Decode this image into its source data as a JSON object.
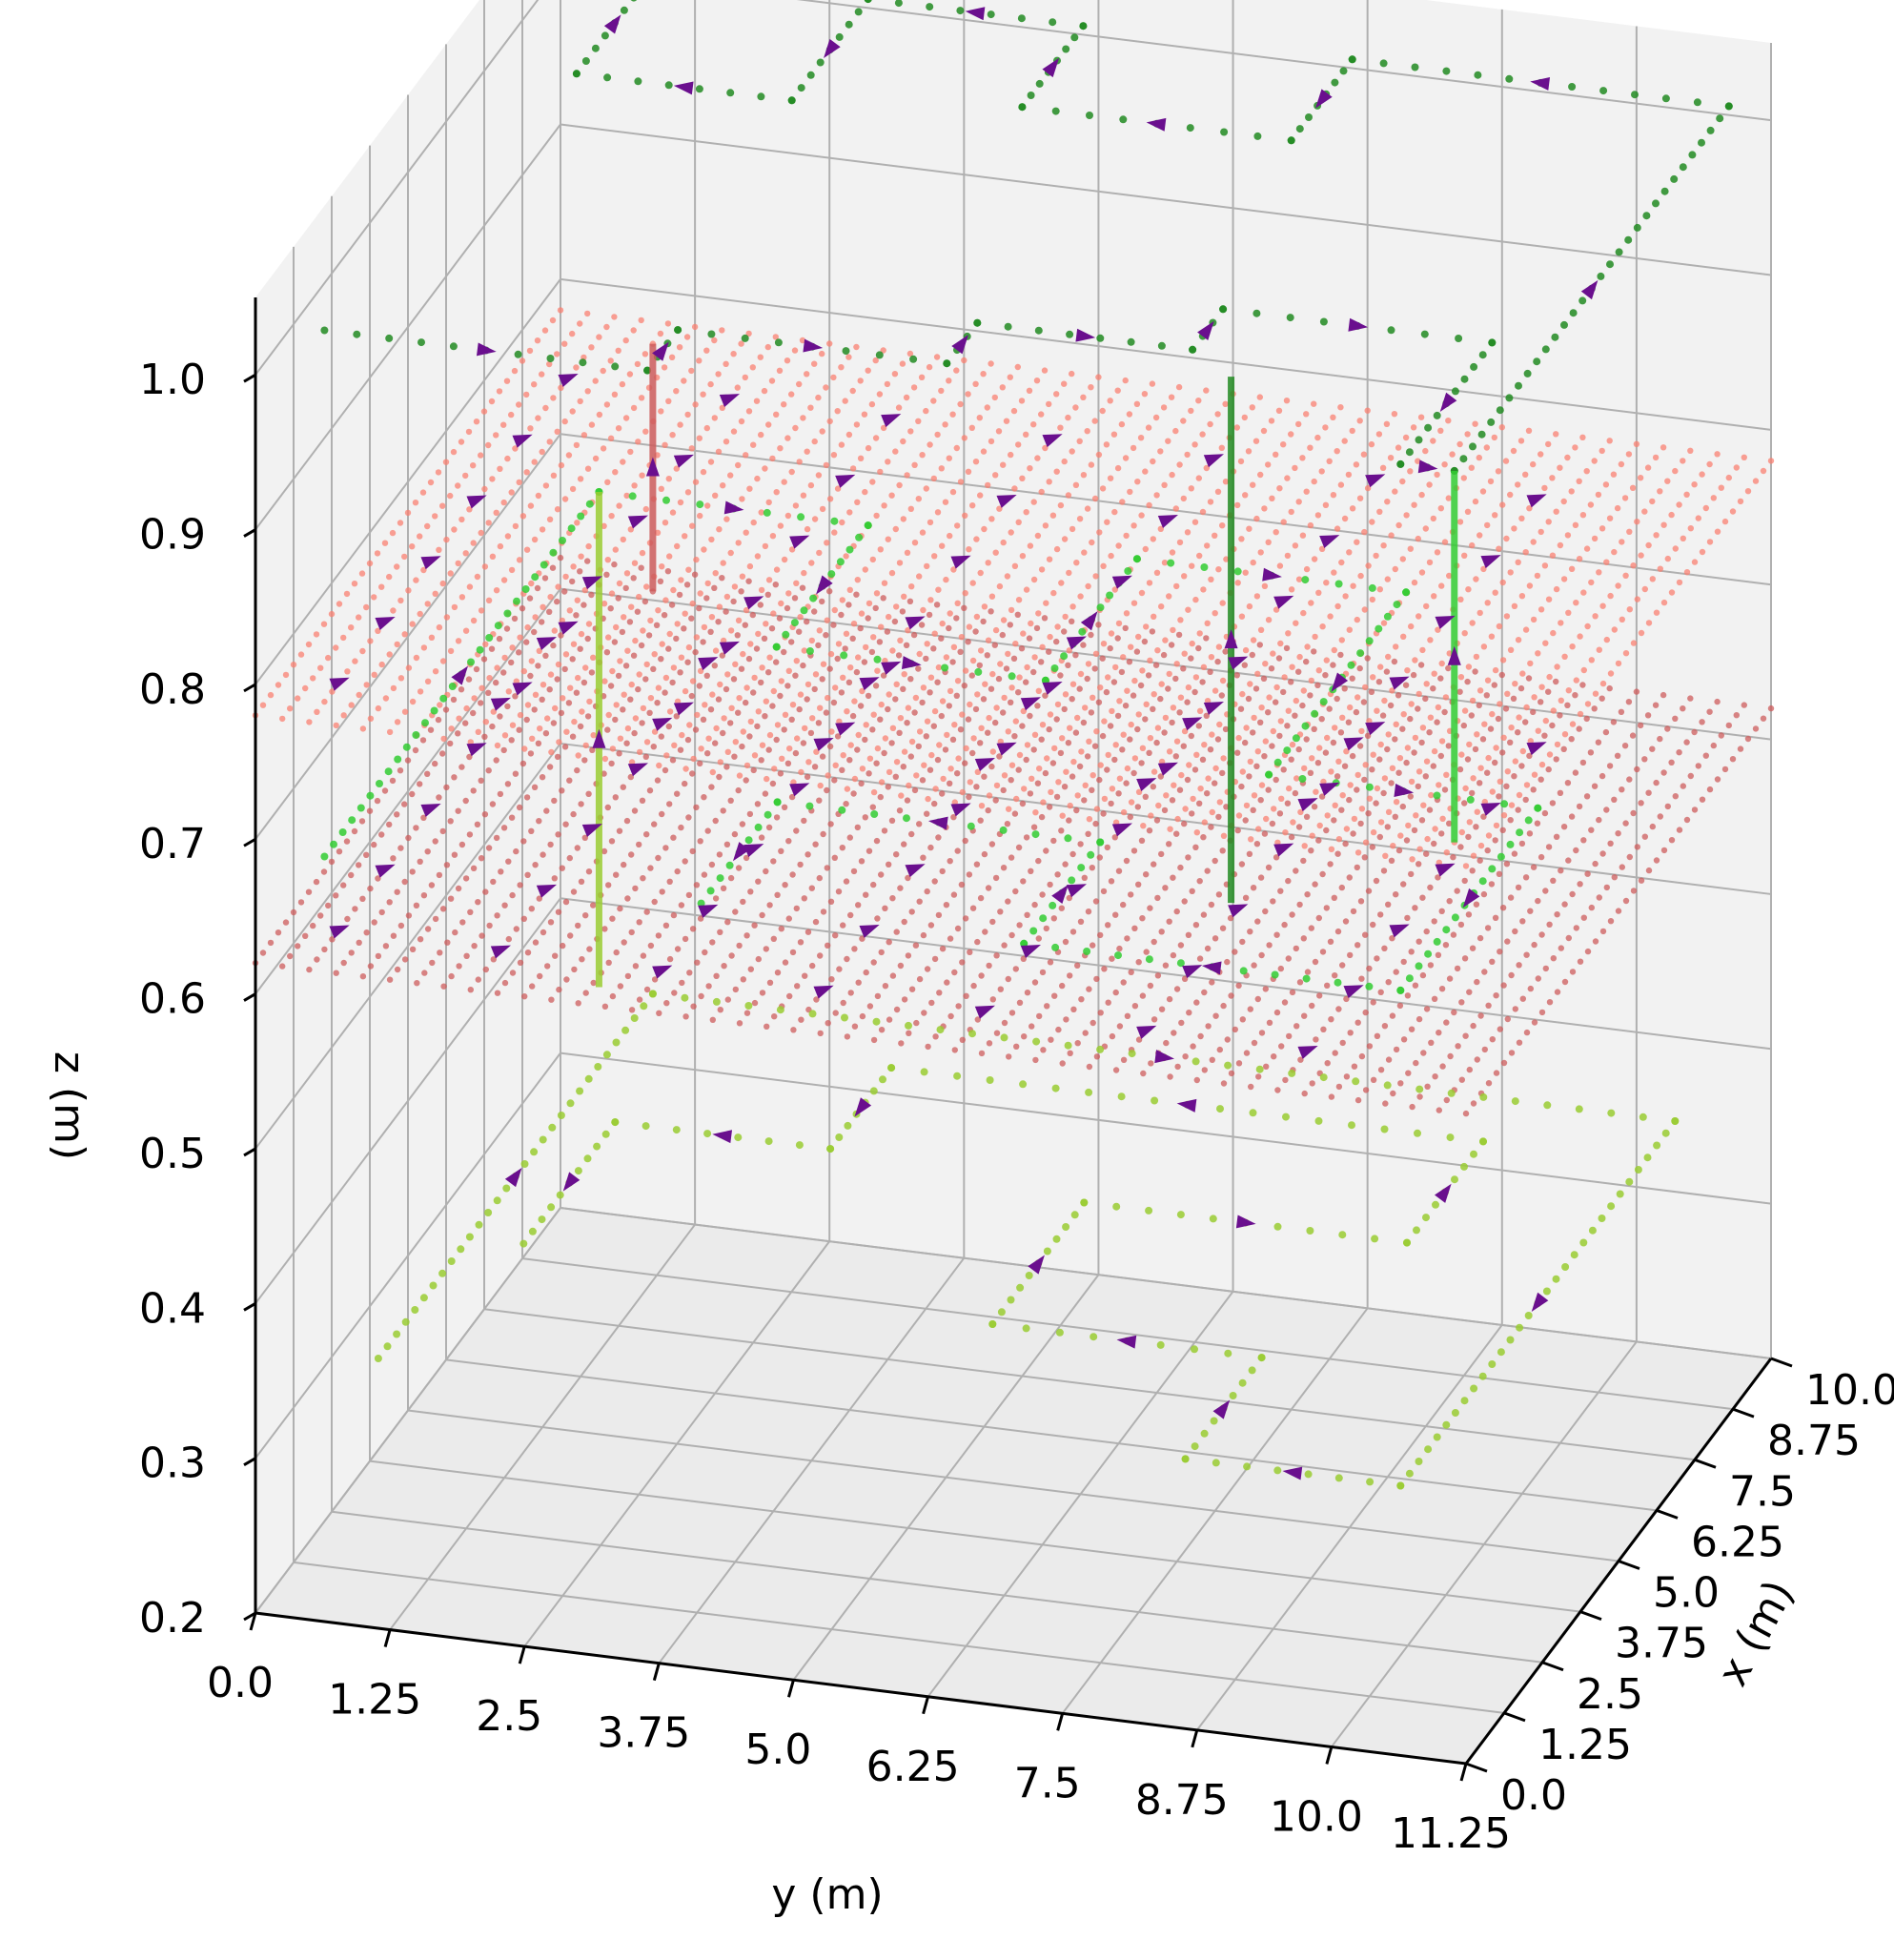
{
  "chart_data": {
    "type": "scatter3d",
    "axes": {
      "x": {
        "label": "x (m)",
        "ticks": [
          "0.0",
          "1.25",
          "2.5",
          "3.75",
          "5.0",
          "6.25",
          "7.5",
          "8.75",
          "10.0"
        ],
        "range": [
          0,
          10
        ]
      },
      "y": {
        "label": "y (m)",
        "ticks": [
          "0.0",
          "1.25",
          "2.5",
          "3.75",
          "5.0",
          "6.25",
          "7.5",
          "8.75",
          "10.0",
          "11.25"
        ],
        "range": [
          0,
          11.25
        ]
      },
      "z": {
        "label": "z (m)",
        "ticks": [
          "0.2",
          "0.3",
          "0.4",
          "0.5",
          "0.6",
          "0.7",
          "0.8",
          "0.9",
          "1.0"
        ],
        "range": [
          0.2,
          1.05
        ]
      }
    },
    "grid": true,
    "legend": "none",
    "colors": {
      "pane": "#f2f2f2",
      "grid": "#b0b0b0",
      "arrow": "#6a0f8e",
      "surface_upper": "#fa8072",
      "surface_lower": "#cd5c5c",
      "path_top": "#228b22",
      "path_mid": "#32cd32",
      "path_bottom": "#9acd32"
    },
    "surfaces": [
      {
        "z": 0.78,
        "x": [
          0,
          10
        ],
        "y": [
          0,
          11.25
        ],
        "color": "#fa8072"
      },
      {
        "z": 0.62,
        "x": [
          0,
          10
        ],
        "y": [
          0,
          11.25
        ],
        "color": "#cd5c5c"
      }
    ],
    "paths": [
      {
        "color": "#228b22",
        "z": 1.02,
        "points": [
          [
            0.5,
            0.5
          ],
          [
            0.5,
            3.5
          ],
          [
            1.5,
            3.5
          ],
          [
            1.5,
            6
          ],
          [
            2.5,
            6
          ],
          [
            2.5,
            8
          ],
          [
            3.5,
            8
          ],
          [
            3.5,
            10.5
          ],
          [
            0.5,
            10.5
          ],
          [
            0.5,
            11
          ],
          [
            9.5,
            11
          ],
          [
            9.5,
            7.5
          ],
          [
            7.5,
            7.5
          ],
          [
            7.5,
            5
          ],
          [
            9.5,
            5
          ],
          [
            9.5,
            3
          ],
          [
            7,
            3
          ],
          [
            7,
            1
          ],
          [
            9.5,
            1
          ],
          [
            9.5,
            0.5
          ]
        ]
      },
      {
        "color": "#32cd32",
        "z": 0.68,
        "points": [
          [
            0.5,
            0.5
          ],
          [
            9.5,
            0.5
          ],
          [
            9.5,
            3
          ],
          [
            6.5,
            3
          ],
          [
            6.5,
            5.5
          ],
          [
            9.5,
            5.5
          ],
          [
            9.5,
            8
          ],
          [
            5,
            8
          ],
          [
            5,
            10.5
          ],
          [
            0.5,
            10.5
          ],
          [
            0.5,
            7
          ],
          [
            3,
            7
          ],
          [
            3,
            4
          ],
          [
            0.5,
            4
          ]
        ]
      },
      {
        "color": "#9acd32",
        "z": 0.36,
        "points": [
          [
            0.5,
            1
          ],
          [
            9.5,
            1
          ],
          [
            9.5,
            10.5
          ],
          [
            0.5,
            10.5
          ],
          [
            0.5,
            8.5
          ],
          [
            3,
            8.5
          ],
          [
            3,
            6
          ],
          [
            6,
            6
          ],
          [
            6,
            9
          ],
          [
            8.5,
            9
          ],
          [
            8.5,
            3.5
          ],
          [
            6.5,
            3.5
          ],
          [
            6.5,
            1.5
          ],
          [
            3.5,
            1.5
          ]
        ]
      }
    ],
    "vertical_connectors": [
      {
        "x": 9.5,
        "y": 0.5,
        "z": [
          0.36,
          0.68
        ],
        "color": "#9acd32"
      },
      {
        "x": 9.5,
        "y": 1.0,
        "z": [
          0.62,
          0.78
        ],
        "color": "#cd5c5c"
      },
      {
        "x": 2.0,
        "y": 8.5,
        "z": [
          0.68,
          1.02
        ],
        "color": "#228b22"
      },
      {
        "x": 0.5,
        "y": 11.0,
        "z": [
          0.78,
          1.02
        ],
        "color": "#32cd32"
      }
    ]
  }
}
